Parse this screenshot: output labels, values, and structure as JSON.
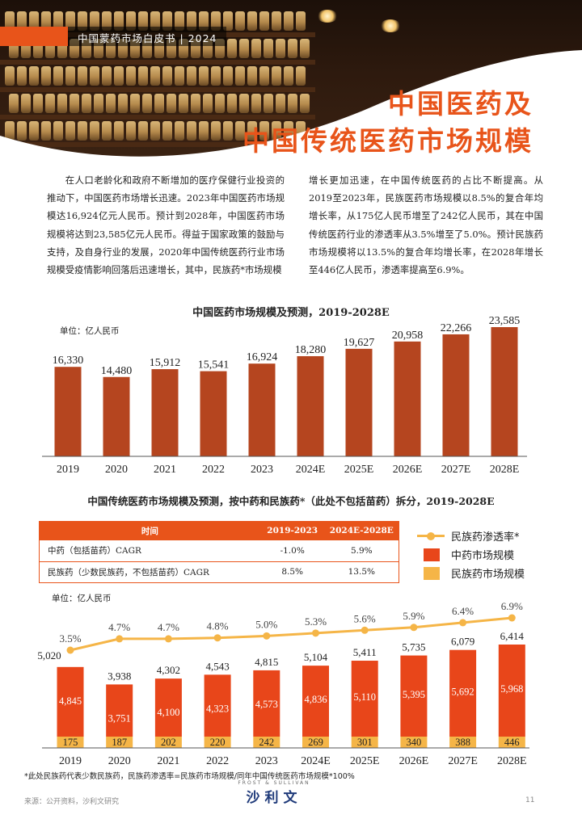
{
  "header": {
    "text": "中国蒙药市场白皮书 | 2024"
  },
  "title": {
    "line1": "中国医药及",
    "line2": "中国传统医药市场规模"
  },
  "body": {
    "left": "在人口老龄化和政府不断增加的医疗保健行业投资的推动下，中国医药市场增长迅速。2023年中国医药市场规模达16,924亿元人民币。预计到2028年，中国医药市场规模将达到23,585亿元人民币。得益于国家政策的鼓励与支持，及自身行业的发展，2020年中国传统医药行业市场规模受疫情影响回落后迅速增长，其中，民族药*市场规模",
    "right": "增长更加迅速，在中国传统医药的占比不断提高。从2019至2023年，民族医药市场规模以8.5%的复合年均增长率，从175亿人民币增至了242亿人民币，其在中国传统医药行业的渗透率从3.5%增至了5.0%。预计民族药市场规模将以13.5%的复合年均增长率，在2028年增长至446亿人民币，渗透率提高至6.9%。"
  },
  "chart_data": [
    {
      "type": "bar",
      "title": "中国医药市场规模及预测，2019-2028E",
      "unit": "单位：亿人民币",
      "categories": [
        "2019",
        "2020",
        "2021",
        "2022",
        "2023",
        "2024E",
        "2025E",
        "2026E",
        "2027E",
        "2028E"
      ],
      "value_labels": [
        "16,330",
        "14,480",
        "15,912",
        "15,541",
        "16,924",
        "18,280",
        "19,627",
        "20,958",
        "22,266",
        "23,585"
      ],
      "values": [
        16330,
        14480,
        15912,
        15541,
        16924,
        18280,
        19627,
        20958,
        22266,
        23585
      ],
      "color": "#b5451f"
    },
    {
      "type": "bar",
      "stacked": true,
      "title": "中国传统医药市场规模及预测，按中药和民族药*（此处不包括苗药）拆分，2019-2028E",
      "unit": "单位：亿人民币",
      "categories": [
        "2019",
        "2020",
        "2021",
        "2022",
        "2023",
        "2024E",
        "2025E",
        "2026E",
        "2027E",
        "2028E"
      ],
      "series": [
        {
          "name": "民族药市场规模",
          "color": "#f5b547",
          "values": [
            175,
            187,
            202,
            220,
            242,
            269,
            301,
            340,
            388,
            446
          ],
          "labels": [
            "175",
            "187",
            "202",
            "220",
            "242",
            "269",
            "301",
            "340",
            "388",
            "446"
          ]
        },
        {
          "name": "中药市场规模",
          "color": "#e8461a",
          "values": [
            4845,
            3751,
            4100,
            4323,
            4573,
            4836,
            5110,
            5395,
            5692,
            5968
          ],
          "labels": [
            "4,845",
            "3,751",
            "4,100",
            "4,323",
            "4,573",
            "4,836",
            "5,110",
            "5,395",
            "5,692",
            "5,968"
          ]
        }
      ],
      "totals": [
        "5,020",
        "3,938",
        "4,302",
        "4,543",
        "4,815",
        "5,104",
        "5,411",
        "5,735",
        "6,079",
        "6,414"
      ],
      "total_values": [
        5020,
        3938,
        4302,
        4543,
        4815,
        5104,
        5411,
        5735,
        6079,
        6414
      ],
      "line": {
        "name": "民族药渗透率*",
        "color": "#f5b547",
        "values": [
          3.5,
          4.7,
          4.7,
          4.8,
          5.0,
          5.3,
          5.6,
          5.9,
          6.4,
          6.9
        ],
        "labels": [
          "3.5%",
          "4.7%",
          "4.7%",
          "4.8%",
          "5.0%",
          "5.3%",
          "5.6%",
          "5.9%",
          "6.4%",
          "6.9%"
        ]
      },
      "legend_position": "top-right"
    }
  ],
  "table": {
    "headers": [
      "时间",
      "2019-2023",
      "2024E-2028E"
    ],
    "rows": [
      [
        "中药（包括苗药）CAGR",
        "-1.0%",
        "5.9%"
      ],
      [
        "民族药（少数民族药，不包括苗药）CAGR",
        "8.5%",
        "13.5%"
      ]
    ],
    "header_color": "#e8541a"
  },
  "legend": {
    "items": [
      {
        "label": "民族药渗透率*",
        "kind": "line",
        "color": "#f5b547"
      },
      {
        "label": "中药市场规模",
        "kind": "box",
        "color": "#e8461a"
      },
      {
        "label": "民族药市场规模",
        "kind": "box",
        "color": "#f5b547"
      }
    ]
  },
  "footer": {
    "footnote": "*此处民族药代表少数民族药，民族药渗透率=民族药市场规模/同年中国传统医药市场规模*100%",
    "source": "来源：公开资料，沙利文研究",
    "logo_small": "FROST & SULLIVAN",
    "logo_main": "沙利文",
    "page_number": "11"
  },
  "colors": {
    "accent": "#e8541a",
    "bar1": "#b5451f",
    "bar2": "#e8461a",
    "ethnic": "#f5b547"
  }
}
